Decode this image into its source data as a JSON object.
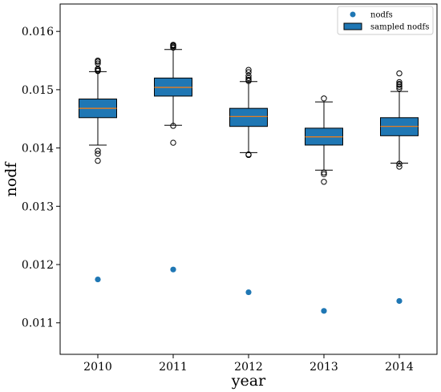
{
  "chart_data": {
    "type": "box",
    "title": "",
    "xlabel": "year",
    "ylabel": "nodf",
    "categories": [
      "2010",
      "2011",
      "2012",
      "2013",
      "2014"
    ],
    "ylim": [
      0.01046,
      0.01647
    ],
    "yticks": [
      "0.011",
      "0.012",
      "0.013",
      "0.014",
      "0.015",
      "0.016"
    ],
    "ytick_values": [
      0.011,
      0.012,
      0.013,
      0.014,
      0.015,
      0.016
    ],
    "grid": false,
    "legend": {
      "position": "top-right",
      "entries": [
        {
          "label": "nodfs",
          "marker": "dot"
        },
        {
          "label": "sampled nodfs",
          "marker": "box"
        }
      ]
    },
    "colors": {
      "box_fill": "#1f77b4",
      "median": "#ff7f0e",
      "point": "#1f77b4",
      "outline": "#000000"
    },
    "series": [
      {
        "name": "sampled nodfs",
        "kind": "box",
        "boxes": [
          {
            "q1": 0.01452,
            "median": 0.01468,
            "q3": 0.01484,
            "whislo": 0.01405,
            "whishi": 0.01531,
            "fliers": [
              0.01395,
              0.0139,
              0.01378,
              0.01532,
              0.01533,
              0.01535,
              0.01536,
              0.01545,
              0.01548,
              0.0155
            ]
          },
          {
            "q1": 0.01489,
            "median": 0.01504,
            "q3": 0.0152,
            "whislo": 0.01439,
            "whishi": 0.01569,
            "fliers": [
              0.01438,
              0.01409,
              0.01572,
              0.01573,
              0.01575,
              0.01576,
              0.01577
            ]
          },
          {
            "q1": 0.01437,
            "median": 0.01454,
            "q3": 0.01468,
            "whislo": 0.01392,
            "whishi": 0.01514,
            "fliers": [
              0.01389,
              0.01388,
              0.01515,
              0.01517,
              0.0152,
              0.01524,
              0.0153,
              0.01534
            ]
          },
          {
            "q1": 0.01405,
            "median": 0.01419,
            "q3": 0.01434,
            "whislo": 0.01362,
            "whishi": 0.01479,
            "fliers": [
              0.01358,
              0.01355,
              0.01342,
              0.01485
            ]
          },
          {
            "q1": 0.01421,
            "median": 0.01437,
            "q3": 0.01452,
            "whislo": 0.01374,
            "whishi": 0.01497,
            "fliers": [
              0.01373,
              0.01368,
              0.01502,
              0.01505,
              0.01508,
              0.0151,
              0.01513,
              0.01528
            ]
          }
        ]
      },
      {
        "name": "nodfs",
        "kind": "scatter",
        "values": [
          0.011745,
          0.011915,
          0.011525,
          0.011205,
          0.011375
        ]
      }
    ]
  }
}
